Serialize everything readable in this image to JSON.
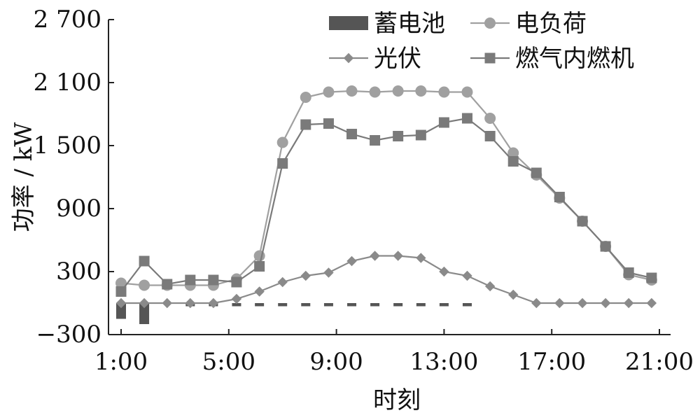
{
  "chart_data": {
    "type": "line",
    "xlabel": "时刻",
    "ylabel": "功率 / kW",
    "xlim": [
      1,
      21
    ],
    "ylim": [
      -300,
      2700
    ],
    "x_ticks": [
      1,
      5,
      9,
      13,
      17,
      21
    ],
    "x_tick_labels": [
      "1:00",
      "5:00",
      "9:00",
      "13:00",
      "17:00",
      "21:00"
    ],
    "y_ticks": [
      -300,
      300,
      900,
      1500,
      2100,
      2700
    ],
    "y_tick_labels": [
      "−300",
      "300",
      "900",
      "1 500",
      "2 100",
      "2 700"
    ],
    "grid": false,
    "legend_position": "top-right",
    "x": [
      1,
      1.86,
      2.71,
      3.57,
      4.43,
      5.29,
      6.14,
      7.0,
      7.86,
      8.71,
      9.57,
      10.43,
      11.29,
      12.14,
      13.0,
      13.86,
      14.71,
      15.57,
      16.43,
      17.29,
      18.14,
      19.0,
      19.86,
      20.71
    ],
    "series": [
      {
        "name": "蓄电池",
        "type": "bar",
        "color": "#555555",
        "values": [
          -150,
          -200,
          0,
          -30,
          -30,
          -30,
          -30,
          -30,
          -30,
          -30,
          -30,
          -30,
          -30,
          -30,
          -30,
          -30,
          0,
          0,
          0,
          0,
          0,
          0,
          0,
          0
        ]
      },
      {
        "name": "电负荷",
        "type": "line",
        "marker": "circle",
        "color": "#a0a0a0",
        "values": [
          190,
          170,
          170,
          170,
          170,
          230,
          450,
          1530,
          1960,
          2010,
          2020,
          2010,
          2020,
          2020,
          2010,
          2010,
          1760,
          1430,
          1220,
          1000,
          780,
          540,
          270,
          220
        ]
      },
      {
        "name": "光伏",
        "type": "line",
        "marker": "diamond",
        "color": "#8a8a8a",
        "values": [
          0,
          0,
          0,
          0,
          0,
          40,
          110,
          200,
          260,
          290,
          400,
          450,
          450,
          430,
          300,
          260,
          160,
          80,
          0,
          0,
          0,
          0,
          0,
          0
        ]
      },
      {
        "name": "燃气内燃机",
        "type": "line",
        "marker": "square",
        "color": "#7a7a7a",
        "values": [
          110,
          400,
          180,
          220,
          220,
          200,
          350,
          1330,
          1700,
          1710,
          1610,
          1550,
          1590,
          1600,
          1720,
          1760,
          1590,
          1350,
          1240,
          1010,
          780,
          540,
          290,
          240
        ]
      }
    ]
  }
}
